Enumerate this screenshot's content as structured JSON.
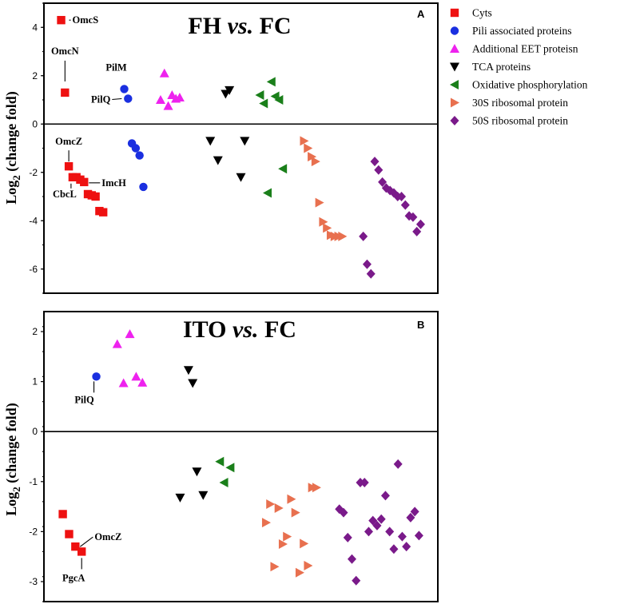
{
  "legend": [
    {
      "name": "Cyts",
      "marker": "square",
      "color": "#ee1111"
    },
    {
      "name": "Pili associated proteins",
      "marker": "circle",
      "color": "#1a2fe0"
    },
    {
      "name": "Additional EET proteisn",
      "marker": "triangle-up",
      "color": "#ee22ee"
    },
    {
      "name": "TCA proteins",
      "marker": "triangle-down",
      "color": "#000000"
    },
    {
      "name": "Oxidative phosphorylation",
      "marker": "triangle-left",
      "color": "#1a7f1a"
    },
    {
      "name": "30S ribosomal protein",
      "marker": "triangle-right",
      "color": "#e8704f"
    },
    {
      "name": "50S ribosomal protein",
      "marker": "diamond",
      "color": "#7a1a8a"
    }
  ],
  "chart_data": [
    {
      "type": "scatter",
      "panel": "A",
      "title_main": "FH ",
      "title_italic": "vs.",
      "title_end": " FC",
      "ylabel_main": "Log",
      "ylabel_sub": "2",
      "ylabel_end": " (change fold)",
      "ylim": [
        -7,
        5
      ],
      "yticks": [
        -6,
        -4,
        -2,
        0,
        2,
        4
      ],
      "ytick_labels": [
        "-6",
        "-4",
        "-2",
        "0",
        "2",
        "4"
      ],
      "series": [
        {
          "name": "Cyts",
          "points": [
            [
              1.2,
              4.3
            ],
            [
              1.4,
              1.3
            ],
            [
              1.6,
              -1.75
            ],
            [
              1.8,
              -2.2
            ],
            [
              2.0,
              -2.2
            ],
            [
              2.2,
              -2.3
            ],
            [
              2.4,
              -2.4
            ],
            [
              2.6,
              -2.9
            ],
            [
              2.8,
              -2.95
            ],
            [
              3.0,
              -3.0
            ],
            [
              3.2,
              -3.6
            ],
            [
              3.4,
              -3.65
            ]
          ]
        },
        {
          "name": "Pili associated proteins",
          "points": [
            [
              4.5,
              1.45
            ],
            [
              4.7,
              1.05
            ],
            [
              4.9,
              -0.8
            ],
            [
              5.1,
              -1.0
            ],
            [
              5.3,
              -1.3
            ],
            [
              5.5,
              -2.6
            ]
          ]
        },
        {
          "name": "Additional EET proteisn",
          "points": [
            [
              6.4,
              1.0
            ],
            [
              6.6,
              2.1
            ],
            [
              6.8,
              0.75
            ],
            [
              7.0,
              1.2
            ],
            [
              7.2,
              1.05
            ],
            [
              7.4,
              1.1
            ]
          ]
        },
        {
          "name": "TCA proteins",
          "points": [
            [
              9.0,
              -0.7
            ],
            [
              9.4,
              -1.5
            ],
            [
              9.8,
              1.25
            ],
            [
              10.0,
              1.4
            ],
            [
              10.6,
              -2.2
            ],
            [
              10.8,
              -0.7
            ]
          ]
        },
        {
          "name": "Oxidative phosphorylation",
          "points": [
            [
              11.6,
              1.2
            ],
            [
              11.8,
              0.85
            ],
            [
              12.0,
              -2.85
            ],
            [
              12.2,
              1.75
            ],
            [
              12.4,
              1.15
            ],
            [
              12.6,
              1.0
            ],
            [
              12.8,
              -1.85
            ]
          ]
        },
        {
          "name": "30S ribosomal protein",
          "points": [
            [
              13.9,
              -0.7
            ],
            [
              14.1,
              -1.0
            ],
            [
              14.3,
              -1.35
            ],
            [
              14.5,
              -1.55
            ],
            [
              14.7,
              -3.25
            ],
            [
              14.9,
              -4.05
            ],
            [
              15.1,
              -4.3
            ],
            [
              15.3,
              -4.6
            ],
            [
              15.5,
              -4.65
            ],
            [
              15.7,
              -4.65
            ],
            [
              15.9,
              -4.65
            ]
          ]
        },
        {
          "name": "50S ribosomal protein",
          "points": [
            [
              17.0,
              -4.65
            ],
            [
              17.2,
              -5.8
            ],
            [
              17.4,
              -6.2
            ],
            [
              17.6,
              -1.55
            ],
            [
              17.8,
              -1.9
            ],
            [
              18.0,
              -2.4
            ],
            [
              18.2,
              -2.65
            ],
            [
              18.4,
              -2.75
            ],
            [
              18.6,
              -2.85
            ],
            [
              18.8,
              -3.0
            ],
            [
              19.0,
              -3.0
            ],
            [
              19.2,
              -3.35
            ],
            [
              19.4,
              -3.8
            ],
            [
              19.6,
              -3.85
            ],
            [
              19.8,
              -4.45
            ],
            [
              20.0,
              -4.15
            ]
          ]
        }
      ],
      "annotations": [
        {
          "text": "OmcS",
          "series": 0,
          "point": 0,
          "anchor": "start"
        },
        {
          "text": "OmcN",
          "series": 0,
          "point": 1,
          "anchor": "middle"
        },
        {
          "text": "OmcZ",
          "series": 0,
          "point": 2,
          "anchor": "middle"
        },
        {
          "text": "CbcL",
          "series": 0,
          "point": 3,
          "anchor": "middle"
        },
        {
          "text": "ImcH",
          "series": 0,
          "point": 6,
          "anchor": "start"
        },
        {
          "text": "PilM",
          "series": 1,
          "point": 0,
          "anchor": "middle"
        },
        {
          "text": "PilQ",
          "series": 1,
          "point": 1,
          "anchor": "end"
        }
      ]
    },
    {
      "type": "scatter",
      "panel": "B",
      "title_main": "ITO ",
      "title_italic": "vs.",
      "title_end": " FC",
      "ylabel_main": "Log",
      "ylabel_sub": "2",
      "ylabel_end": " (change fold)",
      "ylim": [
        -3.4,
        2.4
      ],
      "yticks": [
        -3,
        -2,
        -1,
        0,
        1,
        2
      ],
      "ytick_labels": [
        "-3",
        "-2",
        "-1",
        "0",
        "1",
        "2"
      ],
      "series": [
        {
          "name": "Cyts",
          "points": [
            [
              1.0,
              -1.65
            ],
            [
              1.3,
              -2.05
            ],
            [
              1.6,
              -2.3
            ],
            [
              1.9,
              -2.4
            ]
          ]
        },
        {
          "name": "Pili associated proteins",
          "points": [
            [
              2.6,
              1.1
            ]
          ]
        },
        {
          "name": "Additional EET proteisn",
          "points": [
            [
              3.6,
              1.75
            ],
            [
              3.9,
              0.97
            ],
            [
              4.2,
              1.95
            ],
            [
              4.5,
              1.1
            ],
            [
              4.8,
              0.98
            ]
          ]
        },
        {
          "name": "TCA proteins",
          "points": [
            [
              6.6,
              -1.32
            ],
            [
              7.0,
              1.23
            ],
            [
              7.2,
              0.97
            ],
            [
              7.4,
              -0.8
            ],
            [
              7.7,
              -1.27
            ]
          ]
        },
        {
          "name": "Oxidative phosphorylation",
          "points": [
            [
              8.5,
              -0.6
            ],
            [
              8.7,
              -1.02
            ],
            [
              9.0,
              -0.72
            ]
          ]
        },
        {
          "name": "30S ribosomal protein",
          "points": [
            [
              10.7,
              -1.82
            ],
            [
              10.9,
              -1.45
            ],
            [
              11.1,
              -2.7
            ],
            [
              11.3,
              -1.53
            ],
            [
              11.5,
              -2.25
            ],
            [
              11.7,
              -2.1
            ],
            [
              11.9,
              -1.35
            ],
            [
              12.1,
              -1.62
            ],
            [
              12.3,
              -2.82
            ],
            [
              12.5,
              -2.24
            ],
            [
              12.7,
              -2.68
            ],
            [
              12.9,
              -1.12
            ],
            [
              13.1,
              -1.12
            ]
          ]
        },
        {
          "name": "50S ribosomal protein",
          "points": [
            [
              14.2,
              -1.55
            ],
            [
              14.4,
              -1.62
            ],
            [
              14.6,
              -2.12
            ],
            [
              14.8,
              -2.55
            ],
            [
              15.0,
              -2.98
            ],
            [
              15.2,
              -1.02
            ],
            [
              15.4,
              -1.02
            ],
            [
              15.6,
              -2.0
            ],
            [
              15.8,
              -1.78
            ],
            [
              16.0,
              -1.88
            ],
            [
              16.2,
              -1.75
            ],
            [
              16.4,
              -1.28
            ],
            [
              16.6,
              -2.0
            ],
            [
              16.8,
              -2.35
            ],
            [
              17.0,
              -0.65
            ],
            [
              17.2,
              -2.1
            ],
            [
              17.4,
              -2.3
            ],
            [
              17.6,
              -1.72
            ],
            [
              17.8,
              -1.6
            ],
            [
              18.0,
              -2.08
            ]
          ]
        }
      ],
      "annotations": [
        {
          "text": "PilQ",
          "series": 1,
          "point": 0,
          "anchor": "middle"
        },
        {
          "text": "OmcZ",
          "series": 0,
          "point": 2,
          "anchor": "start"
        },
        {
          "text": "PgcA",
          "series": 0,
          "point": 3,
          "anchor": "middle"
        }
      ]
    }
  ]
}
